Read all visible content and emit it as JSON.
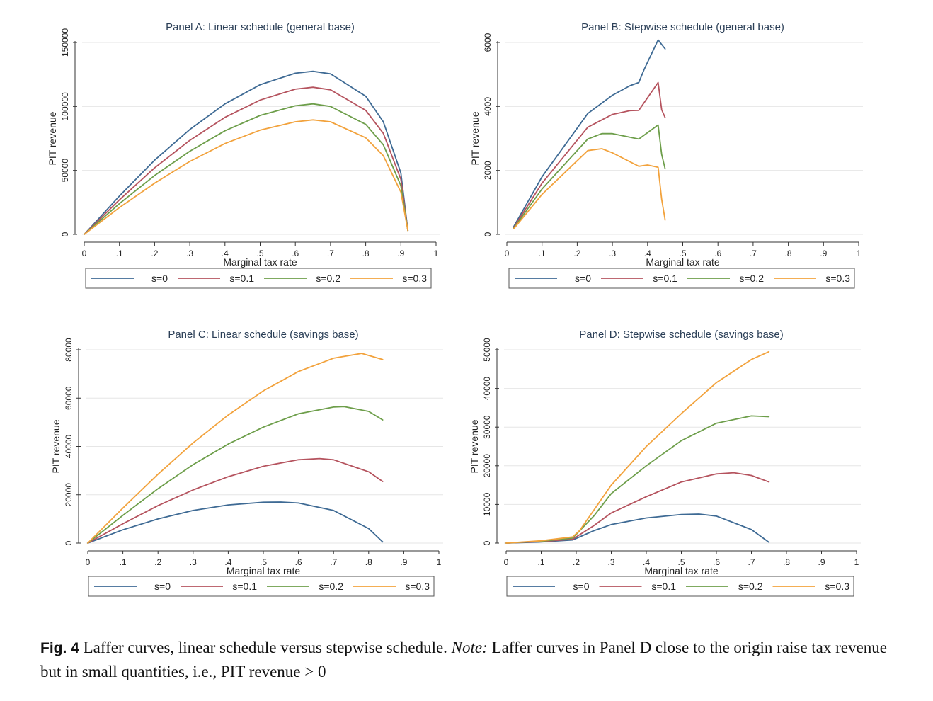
{
  "caption": {
    "label": "Fig. 4",
    "text": "Laffer curves, linear schedule versus stepwise schedule.",
    "note_label": "Note:",
    "note_text": "Laffer curves in Panel D close to the origin raise tax revenue but in small quantities, i.e., PIT revenue > 0"
  },
  "colors": {
    "s0": "#3e6a94",
    "s1": "#b5535e",
    "s2": "#6d9e4a",
    "s3": "#f2a23c",
    "grid": "#e6e6e6"
  },
  "chart_data": [
    {
      "type": "line",
      "title": "Panel A: Linear schedule (general base)",
      "xlabel": "Marginal tax rate",
      "ylabel": "PIT revenue",
      "xlim": [
        0,
        1
      ],
      "ylim": [
        0,
        150000
      ],
      "xticks": [
        0,
        0.1,
        0.2,
        0.3,
        0.4,
        0.5,
        0.6,
        0.7,
        0.8,
        0.9,
        1
      ],
      "xtick_labels": [
        "0",
        ".1",
        ".2",
        ".3",
        ".4",
        ".5",
        ".6",
        ".7",
        ".8",
        ".9",
        "1"
      ],
      "yticks": [
        0,
        50000,
        100000,
        150000
      ],
      "ytick_labels": [
        "0",
        "50000",
        "100000",
        "150000"
      ],
      "legend": [
        "s=0",
        "s=0.1",
        "s=0.2",
        "s=0.3"
      ],
      "series": [
        {
          "name": "s=0",
          "x": [
            0,
            0.1,
            0.2,
            0.3,
            0.4,
            0.5,
            0.6,
            0.65,
            0.7,
            0.8,
            0.85,
            0.9,
            0.92
          ],
          "y": [
            0,
            30000,
            58000,
            82000,
            102000,
            117000,
            126000,
            127500,
            125500,
            108000,
            88000,
            48000,
            3000
          ]
        },
        {
          "name": "s=0.1",
          "x": [
            0,
            0.1,
            0.2,
            0.3,
            0.4,
            0.5,
            0.6,
            0.65,
            0.7,
            0.8,
            0.85,
            0.9,
            0.92
          ],
          "y": [
            0,
            27000,
            52000,
            73500,
            91500,
            105000,
            113500,
            115000,
            113000,
            97000,
            79000,
            43000,
            3000
          ]
        },
        {
          "name": "s=0.2",
          "x": [
            0,
            0.1,
            0.2,
            0.3,
            0.4,
            0.5,
            0.6,
            0.65,
            0.7,
            0.8,
            0.85,
            0.9,
            0.92
          ],
          "y": [
            0,
            24000,
            46000,
            65000,
            81000,
            93000,
            100500,
            102000,
            100000,
            86000,
            70000,
            38000,
            3000
          ]
        },
        {
          "name": "s=0.3",
          "x": [
            0,
            0.1,
            0.2,
            0.3,
            0.4,
            0.5,
            0.6,
            0.65,
            0.7,
            0.8,
            0.85,
            0.9,
            0.92
          ],
          "y": [
            0,
            21000,
            40000,
            57000,
            71000,
            81500,
            88000,
            89500,
            88000,
            75500,
            61500,
            33000,
            3000
          ]
        }
      ]
    },
    {
      "type": "line",
      "title": "Panel B: Stepwise schedule (general base)",
      "xlabel": "Marginal tax rate",
      "ylabel": "PIT revenue",
      "xlim": [
        0,
        1
      ],
      "ylim": [
        0,
        6000
      ],
      "xticks": [
        0,
        0.1,
        0.2,
        0.3,
        0.4,
        0.5,
        0.6,
        0.7,
        0.8,
        0.9,
        1
      ],
      "xtick_labels": [
        "0",
        ".1",
        ".2",
        ".3",
        ".4",
        ".5",
        ".6",
        ".7",
        ".8",
        ".9",
        "1"
      ],
      "yticks": [
        0,
        2000,
        4000,
        6000
      ],
      "ytick_labels": [
        "0",
        "2000",
        "4000",
        "6000"
      ],
      "legend": [
        "s=0",
        "s=0.1",
        "s=0.2",
        "s=0.3"
      ],
      "series": [
        {
          "name": "s=0",
          "x": [
            0.02,
            0.1,
            0.23,
            0.3,
            0.35,
            0.375,
            0.39,
            0.43,
            0.45
          ],
          "y": [
            250,
            1800,
            3780,
            4350,
            4650,
            4750,
            5150,
            6080,
            5800
          ]
        },
        {
          "name": "s=0.1",
          "x": [
            0.02,
            0.1,
            0.23,
            0.3,
            0.35,
            0.375,
            0.43,
            0.44,
            0.45
          ],
          "y": [
            220,
            1600,
            3350,
            3750,
            3870,
            3880,
            4750,
            3900,
            3650
          ]
        },
        {
          "name": "s=0.2",
          "x": [
            0.02,
            0.1,
            0.23,
            0.27,
            0.3,
            0.375,
            0.43,
            0.44,
            0.45
          ],
          "y": [
            200,
            1420,
            2980,
            3150,
            3150,
            2980,
            3420,
            2500,
            2050
          ]
        },
        {
          "name": "s=0.3",
          "x": [
            0.02,
            0.1,
            0.23,
            0.27,
            0.3,
            0.375,
            0.4,
            0.43,
            0.44,
            0.45
          ],
          "y": [
            180,
            1250,
            2620,
            2680,
            2550,
            2130,
            2170,
            2100,
            1100,
            450
          ]
        }
      ]
    },
    {
      "type": "line",
      "title": "Panel C: Linear schedule (savings base)",
      "xlabel": "Marginal tax rate",
      "ylabel": "PIT revenue",
      "xlim": [
        0,
        1
      ],
      "ylim": [
        0,
        80000
      ],
      "xticks": [
        0,
        0.1,
        0.2,
        0.3,
        0.4,
        0.5,
        0.6,
        0.7,
        0.8,
        0.9,
        1
      ],
      "xtick_labels": [
        "0",
        ".1",
        ".2",
        ".3",
        ".4",
        ".5",
        ".6",
        ".7",
        ".8",
        ".9",
        "1"
      ],
      "yticks": [
        0,
        20000,
        40000,
        60000,
        80000
      ],
      "ytick_labels": [
        "0",
        "20000",
        "40000",
        "60000",
        "80000"
      ],
      "legend": [
        "s=0",
        "s=0.1",
        "s=0.2",
        "s=0.3"
      ],
      "series": [
        {
          "name": "s=0",
          "x": [
            0,
            0.1,
            0.2,
            0.3,
            0.4,
            0.5,
            0.55,
            0.6,
            0.7,
            0.8,
            0.84
          ],
          "y": [
            0,
            5500,
            10000,
            13500,
            15800,
            16900,
            17000,
            16600,
            13500,
            6000,
            500
          ]
        },
        {
          "name": "s=0.1",
          "x": [
            0,
            0.1,
            0.2,
            0.3,
            0.4,
            0.5,
            0.6,
            0.66,
            0.7,
            0.8,
            0.84
          ],
          "y": [
            0,
            8000,
            15500,
            22000,
            27500,
            31800,
            34500,
            35000,
            34500,
            29500,
            25500
          ]
        },
        {
          "name": "s=0.2",
          "x": [
            0,
            0.1,
            0.2,
            0.3,
            0.4,
            0.5,
            0.6,
            0.7,
            0.73,
            0.8,
            0.84
          ],
          "y": [
            0,
            11500,
            22500,
            32500,
            41000,
            48000,
            53500,
            56300,
            56500,
            54500,
            51000
          ]
        },
        {
          "name": "s=0.3",
          "x": [
            0,
            0.1,
            0.2,
            0.3,
            0.4,
            0.5,
            0.6,
            0.7,
            0.78,
            0.84
          ],
          "y": [
            0,
            14500,
            28500,
            41500,
            53000,
            63000,
            71000,
            76500,
            78500,
            76000
          ]
        }
      ]
    },
    {
      "type": "line",
      "title": "Panel D: Stepwise schedule (savings base)",
      "xlabel": "Marginal tax rate",
      "ylabel": "PIT revenue",
      "xlim": [
        0,
        1
      ],
      "ylim": [
        0,
        50000
      ],
      "xticks": [
        0,
        0.1,
        0.2,
        0.3,
        0.4,
        0.5,
        0.6,
        0.7,
        0.8,
        0.9,
        1
      ],
      "xtick_labels": [
        "0",
        ".1",
        ".2",
        ".3",
        ".4",
        ".5",
        ".6",
        ".7",
        ".8",
        ".9",
        "1"
      ],
      "yticks": [
        0,
        10000,
        20000,
        30000,
        40000,
        50000
      ],
      "ytick_labels": [
        "0",
        "10000",
        "20000",
        "30000",
        "40000",
        "50000"
      ],
      "legend": [
        "s=0",
        "s=0.1",
        "s=0.2",
        "s=0.3"
      ],
      "series": [
        {
          "name": "s=0",
          "x": [
            0,
            0.1,
            0.19,
            0.25,
            0.3,
            0.4,
            0.5,
            0.55,
            0.6,
            0.7,
            0.75
          ],
          "y": [
            0,
            300,
            800,
            3200,
            4800,
            6500,
            7400,
            7500,
            7000,
            3500,
            200
          ]
        },
        {
          "name": "s=0.1",
          "x": [
            0,
            0.1,
            0.19,
            0.25,
            0.3,
            0.4,
            0.5,
            0.6,
            0.65,
            0.7,
            0.75
          ],
          "y": [
            0,
            400,
            1000,
            4500,
            7800,
            12000,
            15800,
            17900,
            18200,
            17500,
            15800
          ]
        },
        {
          "name": "s=0.2",
          "x": [
            0,
            0.1,
            0.19,
            0.25,
            0.3,
            0.4,
            0.5,
            0.6,
            0.7,
            0.75
          ],
          "y": [
            0,
            500,
            1300,
            7000,
            12800,
            20000,
            26500,
            31000,
            32900,
            32700
          ]
        },
        {
          "name": "s=0.3",
          "x": [
            0,
            0.1,
            0.19,
            0.21,
            0.3,
            0.4,
            0.5,
            0.6,
            0.7,
            0.75
          ],
          "y": [
            0,
            600,
            1600,
            3300,
            15000,
            25000,
            33500,
            41500,
            47500,
            49500
          ]
        }
      ]
    }
  ]
}
